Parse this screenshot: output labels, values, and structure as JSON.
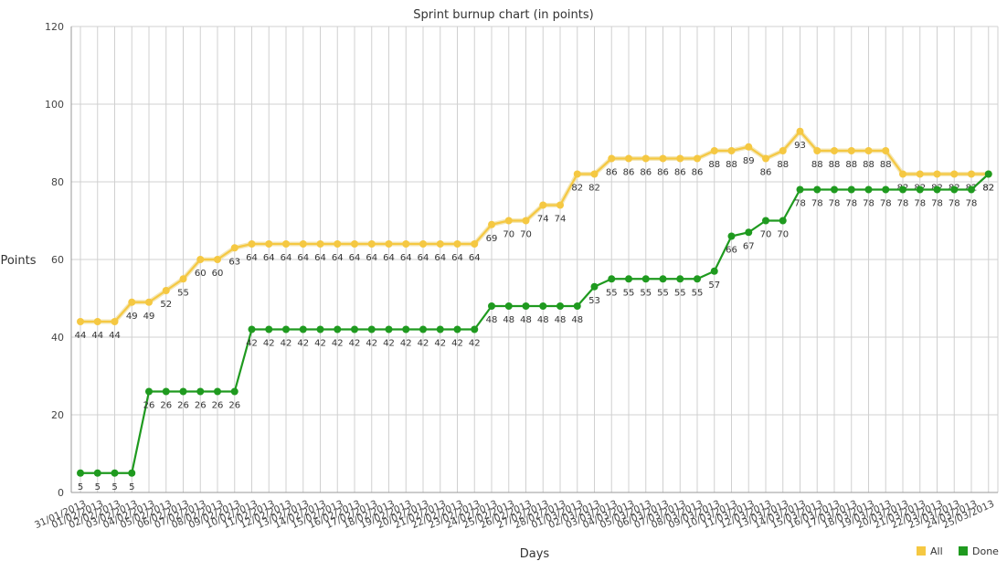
{
  "chart_data": {
    "type": "line",
    "title": "Sprint burnup chart (in points)",
    "xlabel": "Days",
    "ylabel": "Points",
    "ylim": [
      0,
      120
    ],
    "yticks": [
      0,
      20,
      40,
      60,
      80,
      100,
      120
    ],
    "grid": true,
    "legend_position": "bottom-right",
    "categories": [
      "31/01/2013",
      "01/02/2013",
      "02/02/2013",
      "03/02/2013",
      "04/02/2013",
      "05/02/2013",
      "06/02/2013",
      "07/02/2013",
      "08/02/2013",
      "09/02/2013",
      "10/02/2013",
      "11/02/2013",
      "12/02/2013",
      "13/02/2013",
      "14/02/2013",
      "15/02/2013",
      "16/02/2013",
      "17/02/2013",
      "18/02/2013",
      "19/02/2013",
      "20/02/2013",
      "21/02/2013",
      "22/02/2013",
      "23/02/2013",
      "24/02/2013",
      "25/02/2013",
      "26/02/2013",
      "27/02/2013",
      "28/02/2013",
      "01/03/2013",
      "02/03/2013",
      "03/03/2013",
      "04/03/2013",
      "05/03/2013",
      "06/03/2013",
      "07/03/2013",
      "08/03/2013",
      "09/03/2013",
      "10/03/2013",
      "11/03/2013",
      "12/03/2013",
      "13/03/2013",
      "14/03/2013",
      "15/03/2013",
      "16/03/2013",
      "17/03/2013",
      "18/03/2013",
      "19/03/2013",
      "20/03/2013",
      "21/03/2013",
      "22/03/2013",
      "23/03/2013",
      "24/03/2013",
      "25/03/2013"
    ],
    "series": [
      {
        "name": "All",
        "color": "#f5c842",
        "values": [
          44,
          44,
          44,
          49,
          49,
          52,
          55,
          60,
          60,
          63,
          64,
          64,
          64,
          64,
          64,
          64,
          64,
          64,
          64,
          64,
          64,
          64,
          64,
          64,
          69,
          70,
          70,
          74,
          74,
          82,
          82,
          86,
          86,
          86,
          86,
          86,
          86,
          88,
          88,
          89,
          86,
          88,
          93,
          88,
          88,
          88,
          88,
          88,
          82,
          82,
          82,
          82,
          82,
          82
        ]
      },
      {
        "name": "Done",
        "color": "#1f9a1f",
        "values": [
          5,
          5,
          5,
          5,
          26,
          26,
          26,
          26,
          26,
          26,
          42,
          42,
          42,
          42,
          42,
          42,
          42,
          42,
          42,
          42,
          42,
          42,
          42,
          42,
          48,
          48,
          48,
          48,
          48,
          48,
          53,
          55,
          55,
          55,
          55,
          55,
          55,
          57,
          66,
          67,
          70,
          70,
          78,
          78,
          78,
          78,
          78,
          78,
          78,
          78,
          78,
          78,
          78,
          82
        ]
      }
    ]
  }
}
